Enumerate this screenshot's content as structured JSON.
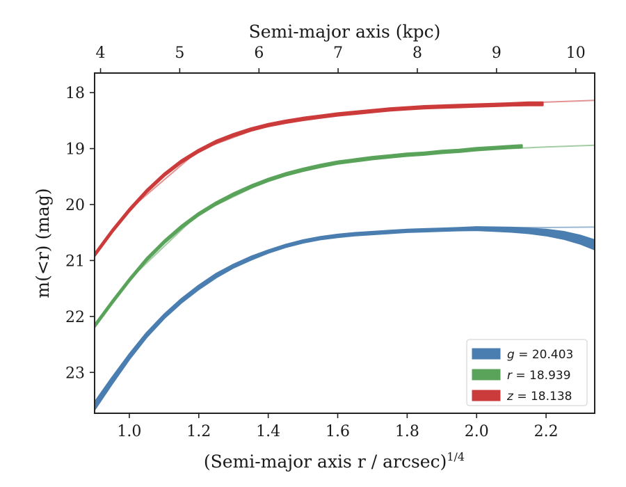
{
  "chart_data": {
    "type": "line",
    "top_axis_label": "Semi-major axis (kpc)",
    "xlabel": "(Semi-major axis r / arcsec)",
    "xlabel_sup": "1/4",
    "ylabel": "m(<r) (mag)",
    "xlim": [
      0.9,
      2.34
    ],
    "ylim": [
      23.73,
      17.65
    ],
    "x_inverted": false,
    "y_inverted": true,
    "xticks": [
      1.0,
      1.2,
      1.4,
      1.6,
      1.8,
      2.0,
      2.2
    ],
    "xtick_labels": [
      "1.0",
      "1.2",
      "1.4",
      "1.6",
      "1.8",
      "2.0",
      "2.2"
    ],
    "yticks": [
      18,
      19,
      20,
      21,
      22,
      23
    ],
    "ytick_labels": [
      "18",
      "19",
      "20",
      "21",
      "22",
      "23"
    ],
    "top_ticks": [
      4,
      5,
      6,
      7,
      8,
      9,
      10
    ],
    "top_tick_labels": [
      "4",
      "5",
      "6",
      "7",
      "8",
      "9",
      "10"
    ],
    "top_tick_x": [
      0.9171,
      1.1451,
      1.3733,
      1.6012,
      1.8293,
      2.0573,
      2.2854
    ],
    "grid": false,
    "legend_position": "lower-right",
    "series": [
      {
        "name": "g = 20.403",
        "legend_var": "g",
        "legend_value": "20.403",
        "color": "#4a7eb0",
        "x": [
          0.9,
          0.95,
          1.0,
          1.05,
          1.1,
          1.15,
          1.2,
          1.25,
          1.3,
          1.35,
          1.4,
          1.45,
          1.5,
          1.55,
          1.6,
          1.65,
          1.7,
          1.75,
          1.8,
          1.85,
          1.9,
          1.95,
          2.0,
          2.05,
          2.1,
          2.15,
          2.2,
          2.25,
          2.3,
          2.34
        ],
        "y": [
          23.6,
          23.15,
          22.72,
          22.33,
          22.0,
          21.72,
          21.48,
          21.27,
          21.1,
          20.96,
          20.84,
          20.74,
          20.66,
          20.6,
          20.56,
          20.53,
          20.51,
          20.49,
          20.47,
          20.46,
          20.45,
          20.44,
          20.43,
          20.44,
          20.45,
          20.47,
          20.5,
          20.55,
          20.63,
          20.72
        ],
        "band_halfwidth": [
          0.06,
          0.05,
          0.04,
          0.035,
          0.03,
          0.03,
          0.03,
          0.03,
          0.025,
          0.025,
          0.02,
          0.02,
          0.02,
          0.02,
          0.02,
          0.02,
          0.02,
          0.02,
          0.02,
          0.02,
          0.02,
          0.02,
          0.025,
          0.03,
          0.035,
          0.04,
          0.05,
          0.06,
          0.07,
          0.08
        ],
        "model_x": [
          0.9,
          1.0,
          1.1,
          1.2,
          1.3,
          1.4,
          1.5,
          1.6,
          1.7,
          1.8,
          1.9,
          2.0,
          2.1,
          2.2,
          2.34
        ],
        "model_y": [
          23.58,
          22.71,
          21.99,
          21.47,
          21.09,
          20.83,
          20.66,
          20.55,
          20.49,
          20.45,
          20.43,
          20.42,
          20.41,
          20.41,
          20.403
        ]
      },
      {
        "name": "r = 18.939",
        "legend_var": "r",
        "legend_value": "18.939",
        "color": "#5aa35a",
        "x": [
          0.9,
          0.95,
          1.0,
          1.05,
          1.1,
          1.15,
          1.2,
          1.25,
          1.3,
          1.35,
          1.4,
          1.45,
          1.5,
          1.55,
          1.6,
          1.65,
          1.7,
          1.75,
          1.8,
          1.85,
          1.9,
          1.95,
          2.0,
          2.05,
          2.1,
          2.13
        ],
        "y": [
          22.17,
          21.75,
          21.35,
          20.98,
          20.67,
          20.4,
          20.17,
          19.98,
          19.82,
          19.68,
          19.56,
          19.46,
          19.38,
          19.31,
          19.25,
          19.21,
          19.17,
          19.14,
          19.11,
          19.09,
          19.06,
          19.04,
          19.01,
          18.99,
          18.97,
          18.96
        ],
        "band_halfwidth": [
          0.02,
          0.02,
          0.02,
          0.02,
          0.02,
          0.02,
          0.02,
          0.02,
          0.02,
          0.02,
          0.02,
          0.02,
          0.02,
          0.02,
          0.02,
          0.02,
          0.02,
          0.02,
          0.02,
          0.02,
          0.02,
          0.02,
          0.02,
          0.02,
          0.02,
          0.02
        ],
        "model_x": [
          0.9,
          1.0,
          1.2,
          1.4,
          1.6,
          1.8,
          2.0,
          2.13,
          2.2,
          2.34
        ],
        "model_y": [
          22.15,
          21.34,
          20.16,
          19.56,
          19.25,
          19.1,
          19.02,
          18.99,
          18.97,
          18.94
        ]
      },
      {
        "name": "z = 18.138",
        "legend_var": "z",
        "legend_value": "18.138",
        "color": "#cc3b3b",
        "x": [
          0.9,
          0.95,
          1.0,
          1.05,
          1.1,
          1.15,
          1.2,
          1.25,
          1.3,
          1.35,
          1.4,
          1.45,
          1.5,
          1.55,
          1.6,
          1.65,
          1.7,
          1.75,
          1.8,
          1.85,
          1.9,
          1.95,
          2.0,
          2.05,
          2.1,
          2.15,
          2.19
        ],
        "y": [
          20.9,
          20.48,
          20.1,
          19.76,
          19.47,
          19.23,
          19.04,
          18.88,
          18.76,
          18.66,
          18.58,
          18.52,
          18.47,
          18.43,
          18.39,
          18.36,
          18.33,
          18.3,
          18.28,
          18.26,
          18.25,
          18.24,
          18.23,
          18.22,
          18.21,
          18.2,
          18.2
        ],
        "band_halfwidth": [
          0.02,
          0.02,
          0.02,
          0.02,
          0.02,
          0.02,
          0.02,
          0.02,
          0.02,
          0.02,
          0.02,
          0.02,
          0.02,
          0.02,
          0.02,
          0.02,
          0.02,
          0.02,
          0.02,
          0.02,
          0.02,
          0.02,
          0.02,
          0.02,
          0.02,
          0.025,
          0.025
        ],
        "model_x": [
          0.9,
          1.0,
          1.2,
          1.4,
          1.6,
          1.8,
          2.0,
          2.2,
          2.34
        ],
        "model_y": [
          20.88,
          20.09,
          19.03,
          18.57,
          18.38,
          18.27,
          18.21,
          18.17,
          18.138
        ]
      }
    ]
  }
}
